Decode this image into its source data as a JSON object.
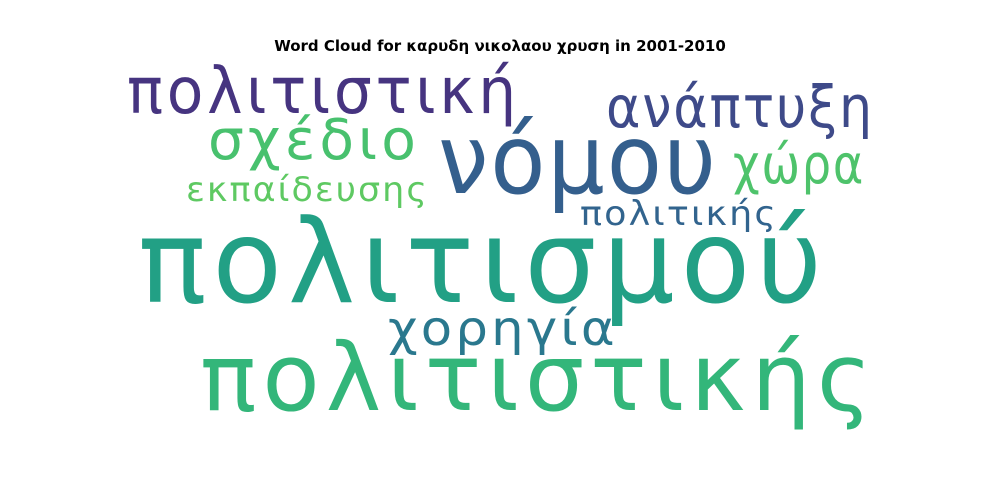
{
  "chart_data": {
    "type": "wordcloud",
    "title": "Word Cloud for καρυδη νικολαου χρυση in 2001-2010",
    "words": [
      {
        "text": "πολιτισμού",
        "color": "#22a085"
      },
      {
        "text": "πολιτιστικής",
        "color": "#33b67a"
      },
      {
        "text": "νόμου",
        "color": "#345f8d"
      },
      {
        "text": "πολιτιστική",
        "color": "#463480"
      },
      {
        "text": "ανάπτυξη",
        "color": "#3e4a89"
      },
      {
        "text": "σχέδιο",
        "color": "#48c16e"
      },
      {
        "text": "χώρα",
        "color": "#4ec36b"
      },
      {
        "text": "χορηγία",
        "color": "#2a788e"
      },
      {
        "text": "πολιτικής",
        "color": "#32648e"
      },
      {
        "text": "εκπαίδευσης",
        "color": "#5ec962"
      }
    ]
  }
}
